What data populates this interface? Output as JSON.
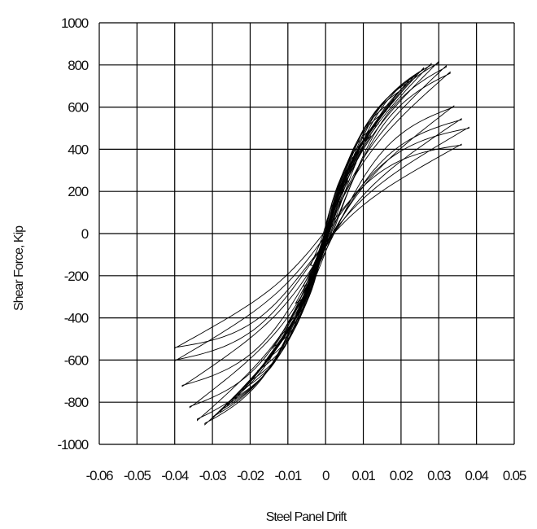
{
  "chart_data": {
    "type": "line",
    "title": "",
    "xlabel": "Steel Panel Drift",
    "ylabel": "Shear Force, Kip",
    "xlim": [
      -0.06,
      0.05
    ],
    "ylim": [
      -1000,
      1000
    ],
    "x_tick_labels": [
      "-0.06",
      "-0.05",
      "-0.04",
      "-0.03",
      "-0.02",
      "-0.01",
      "0",
      "0.01",
      "0.02",
      "0.03",
      "0.04",
      "0.05"
    ],
    "y_tick_labels": [
      "1000",
      "800",
      "600",
      "400",
      "200",
      "0",
      "-200",
      "-400",
      "-600",
      "-800",
      "-1000"
    ],
    "grid": true,
    "legend": "none",
    "series": [
      {
        "line_color": "#000000",
        "loops": [
          {
            "d_max": 0.004,
            "f_max": 150,
            "d_min": -0.004,
            "f_min": -150
          },
          {
            "d_max": 0.006,
            "f_max": 250,
            "d_min": -0.006,
            "f_min": -250
          },
          {
            "d_max": 0.008,
            "f_max": 330,
            "d_min": -0.008,
            "f_min": -330
          },
          {
            "d_max": 0.01,
            "f_max": 400,
            "d_min": -0.01,
            "f_min": -420
          },
          {
            "d_max": 0.012,
            "f_max": 460,
            "d_min": -0.012,
            "f_min": -480
          },
          {
            "d_max": 0.014,
            "f_max": 520,
            "d_min": -0.014,
            "f_min": -540
          },
          {
            "d_max": 0.016,
            "f_max": 580,
            "d_min": -0.016,
            "f_min": -600
          },
          {
            "d_max": 0.018,
            "f_max": 630,
            "d_min": -0.018,
            "f_min": -650
          },
          {
            "d_max": 0.02,
            "f_max": 680,
            "d_min": -0.02,
            "f_min": -700
          },
          {
            "d_max": 0.022,
            "f_max": 720,
            "d_min": -0.022,
            "f_min": -740
          },
          {
            "d_max": 0.024,
            "f_max": 750,
            "d_min": -0.024,
            "f_min": -780
          },
          {
            "d_max": 0.026,
            "f_max": 780,
            "d_min": -0.026,
            "f_min": -810
          },
          {
            "d_max": 0.028,
            "f_max": 800,
            "d_min": -0.028,
            "f_min": -840
          },
          {
            "d_max": 0.03,
            "f_max": 810,
            "d_min": -0.03,
            "f_min": -870
          },
          {
            "d_max": 0.032,
            "f_max": 790,
            "d_min": -0.032,
            "f_min": -900
          },
          {
            "d_max": 0.033,
            "f_max": 760,
            "d_min": -0.034,
            "f_min": -880
          },
          {
            "d_max": 0.034,
            "f_max": 600,
            "d_min": -0.036,
            "f_min": -820
          },
          {
            "d_max": 0.036,
            "f_max": 540,
            "d_min": -0.038,
            "f_min": -720
          },
          {
            "d_max": 0.038,
            "f_max": 500,
            "d_min": -0.04,
            "f_min": -600
          },
          {
            "d_max": 0.036,
            "f_max": 420,
            "d_min": -0.04,
            "f_min": -540
          }
        ]
      }
    ]
  }
}
